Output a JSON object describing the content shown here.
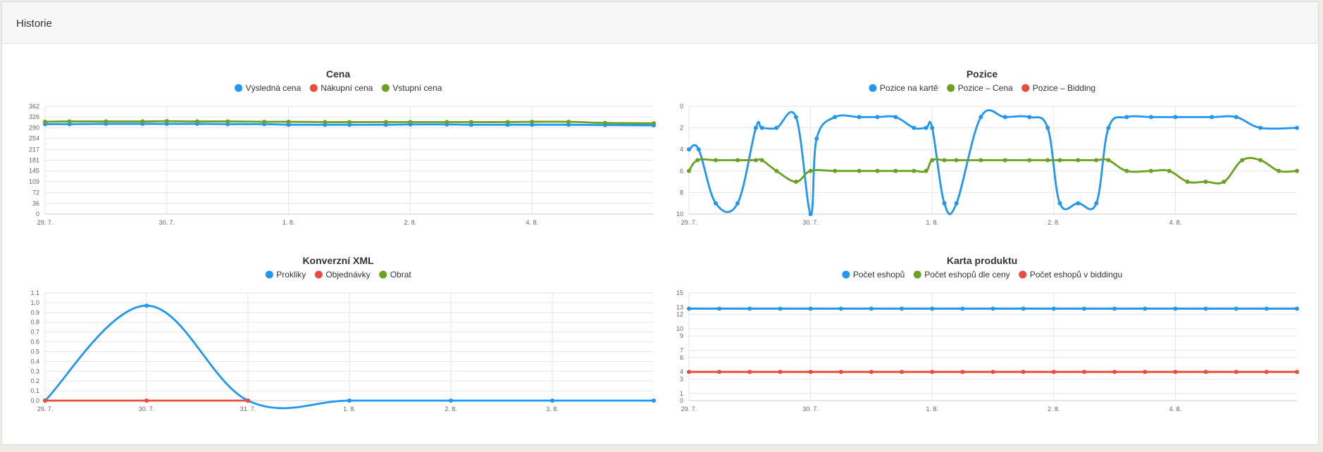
{
  "panel": {
    "title": "Historie"
  },
  "chart_data": [
    {
      "id": "cena",
      "type": "line",
      "title": "Cena",
      "legend_position": "top-center",
      "xlabel": "",
      "ylabel": "",
      "x_ticks": [
        "29. 7.",
        "30. 7.",
        "1. 8.",
        "2. 8.",
        "4. 8."
      ],
      "y_ticks": [
        0,
        36,
        72,
        109,
        145,
        181,
        217,
        254,
        290,
        326,
        362
      ],
      "ylim": [
        0,
        362
      ],
      "y_reversed": false,
      "grid": true,
      "series": [
        {
          "name": "Výsledná cena",
          "color": "#2196f3",
          "x": [
            0,
            0.2,
            0.5,
            0.8,
            1.0,
            1.25,
            1.5,
            1.8,
            2.0,
            2.3,
            2.5,
            2.8,
            3.0,
            3.3,
            3.5,
            3.8,
            4.0,
            4.3,
            4.6,
            5.0
          ],
          "y": [
            302,
            302,
            303,
            303,
            303,
            303,
            302,
            302,
            300,
            300,
            300,
            300,
            301,
            301,
            300,
            300,
            300,
            300,
            299,
            298
          ]
        },
        {
          "name": "Nákupní cena",
          "color": "#e74c3c",
          "x": [],
          "y": []
        },
        {
          "name": "Vstupní cena",
          "color": "#6aa121",
          "x": [
            0,
            0.2,
            0.5,
            0.8,
            1.0,
            1.25,
            1.5,
            1.8,
            2.0,
            2.3,
            2.5,
            2.8,
            3.0,
            3.3,
            3.5,
            3.8,
            4.0,
            4.3,
            4.6,
            5.0
          ],
          "y": [
            310,
            311,
            311,
            311,
            312,
            311,
            311,
            310,
            310,
            309,
            309,
            309,
            309,
            309,
            309,
            309,
            310,
            310,
            306,
            305
          ]
        }
      ]
    },
    {
      "id": "pozice",
      "type": "line",
      "title": "Pozice",
      "legend_position": "top-center",
      "xlabel": "",
      "ylabel": "",
      "x_ticks": [
        "29. 7.",
        "30. 7.",
        "1. 8.",
        "2. 8.",
        "4. 8."
      ],
      "y_ticks": [
        0,
        2,
        4,
        6,
        8,
        10
      ],
      "ylim": [
        0,
        10
      ],
      "y_reversed": true,
      "grid": true,
      "series": [
        {
          "name": "Pozice na kartě",
          "color": "#2196f3",
          "x": [
            0,
            0.08,
            0.22,
            0.4,
            0.55,
            0.6,
            0.72,
            0.88,
            1.0,
            1.05,
            1.2,
            1.4,
            1.55,
            1.7,
            1.85,
            1.95,
            2.0,
            2.1,
            2.2,
            2.4,
            2.6,
            2.8,
            2.95,
            3.05,
            3.2,
            3.35,
            3.45,
            3.6,
            3.8,
            4.0,
            4.3,
            4.5,
            4.7,
            5.0
          ],
          "y": [
            4,
            4,
            9,
            9,
            2,
            2,
            2,
            1,
            10,
            3,
            1,
            1,
            1,
            1,
            2,
            2,
            2,
            9,
            9,
            1,
            1,
            1,
            2,
            9,
            9,
            9,
            2,
            1,
            1,
            1,
            1,
            1,
            2,
            2
          ]
        },
        {
          "name": "Pozice – Cena",
          "color": "#6aa121",
          "x": [
            0,
            0.07,
            0.22,
            0.4,
            0.55,
            0.6,
            0.72,
            0.88,
            1.0,
            1.2,
            1.4,
            1.55,
            1.7,
            1.85,
            1.95,
            2.0,
            2.1,
            2.2,
            2.4,
            2.6,
            2.8,
            2.95,
            3.05,
            3.2,
            3.35,
            3.45,
            3.6,
            3.8,
            3.95,
            4.1,
            4.25,
            4.4,
            4.55,
            4.7,
            4.85,
            5.0
          ],
          "y": [
            6,
            5,
            5,
            5,
            5,
            5,
            6,
            7,
            6,
            6,
            6,
            6,
            6,
            6,
            6,
            5,
            5,
            5,
            5,
            5,
            5,
            5,
            5,
            5,
            5,
            5,
            6,
            6,
            6,
            7,
            7,
            7,
            5,
            5,
            6,
            6
          ]
        },
        {
          "name": "Pozice – Bidding",
          "color": "#e74c3c",
          "x": [],
          "y": []
        }
      ]
    },
    {
      "id": "konverzni",
      "type": "line",
      "title": "Konverzní XML",
      "legend_position": "top-center",
      "xlabel": "",
      "ylabel": "",
      "x_ticks": [
        "29. 7.",
        "30. 7.",
        "31. 7.",
        "1. 8.",
        "2. 8.",
        "3. 8."
      ],
      "y_ticks": [
        0.0,
        0.1,
        0.2,
        0.3,
        0.4,
        0.5,
        0.6,
        0.7,
        0.8,
        0.9,
        1.0,
        1.1
      ],
      "ylim": [
        0,
        1.1
      ],
      "y_reversed": false,
      "grid": true,
      "series": [
        {
          "name": "Prokliky",
          "color": "#2196f3",
          "x": [
            0,
            1,
            2,
            3,
            4,
            5,
            6
          ],
          "y": [
            0,
            0.97,
            0,
            0,
            0,
            0,
            0
          ]
        },
        {
          "name": "Objednávky",
          "color": "#e74c3c",
          "x": [
            0,
            1,
            2
          ],
          "y": [
            0,
            0,
            0
          ]
        },
        {
          "name": "Obrat",
          "color": "#6aa121",
          "x": [],
          "y": []
        }
      ]
    },
    {
      "id": "karta",
      "type": "line",
      "title": "Karta produktu",
      "legend_position": "top-center",
      "xlabel": "",
      "ylabel": "",
      "x_ticks": [
        "29. 7.",
        "30. 7.",
        "1. 8.",
        "2. 8.",
        "4. 8."
      ],
      "y_ticks": [
        0,
        1,
        3,
        4,
        6,
        7,
        9,
        10,
        12,
        13,
        15
      ],
      "ylim": [
        0,
        15
      ],
      "y_reversed": false,
      "grid": true,
      "series": [
        {
          "name": "Počet eshopů",
          "color": "#2196f3",
          "x": [
            0,
            0.25,
            0.5,
            0.75,
            1.0,
            1.25,
            1.5,
            1.75,
            2.0,
            2.25,
            2.5,
            2.75,
            3.0,
            3.25,
            3.5,
            3.75,
            4.0,
            4.25,
            4.5,
            4.75,
            5.0
          ],
          "y": [
            12.8,
            12.8,
            12.8,
            12.8,
            12.8,
            12.8,
            12.8,
            12.8,
            12.8,
            12.8,
            12.8,
            12.8,
            12.8,
            12.8,
            12.8,
            12.8,
            12.8,
            12.8,
            12.8,
            12.8,
            12.8
          ]
        },
        {
          "name": "Počet eshopů dle ceny",
          "color": "#6aa121",
          "x": [],
          "y": []
        },
        {
          "name": "Počet eshopů v biddingu",
          "color": "#e74c3c",
          "x": [
            0,
            0.25,
            0.5,
            0.75,
            1.0,
            1.25,
            1.5,
            1.75,
            2.0,
            2.25,
            2.5,
            2.75,
            3.0,
            3.25,
            3.5,
            3.75,
            4.0,
            4.25,
            4.5,
            4.75,
            5.0
          ],
          "y": [
            4,
            4,
            4,
            4,
            4,
            4,
            4,
            4,
            4,
            4,
            4,
            4,
            4,
            4,
            4,
            4,
            4,
            4,
            4,
            4,
            4
          ]
        }
      ]
    }
  ]
}
